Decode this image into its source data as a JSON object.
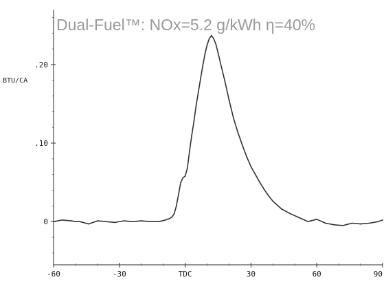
{
  "chart_data": {
    "type": "line",
    "title": "Dual-Fuel™: NOx=5.2 g/kWh η=40%",
    "ylabel": "BTU/CA",
    "xlabel": "",
    "xlim": [
      -60,
      90
    ],
    "ylim": [
      -0.055,
      0.27
    ],
    "y_ticks": [
      {
        "value": 0.2,
        "label": ".20"
      },
      {
        "value": 0.1,
        "label": ".10"
      },
      {
        "value": 0.0,
        "label": "0"
      }
    ],
    "x_ticks": [
      {
        "value": -60,
        "label": "-60"
      },
      {
        "value": -30,
        "label": "-30"
      },
      {
        "value": 0,
        "label": "TDC"
      },
      {
        "value": 30,
        "label": "30"
      },
      {
        "value": 60,
        "label": "60"
      },
      {
        "value": 90,
        "label": "90"
      }
    ],
    "grid": false,
    "series": [
      {
        "color": "#333333",
        "x": [
          -60,
          -56,
          -52,
          -50,
          -48,
          -44,
          -40,
          -36,
          -32,
          -28,
          -24,
          -20,
          -16,
          -12,
          -9,
          -7,
          -6,
          -5,
          -4,
          -3,
          -2,
          -1,
          0,
          1,
          2,
          3,
          4,
          5,
          6,
          7,
          8,
          9,
          10,
          11,
          12,
          13,
          14,
          15,
          16,
          18,
          20,
          22,
          24,
          26,
          28,
          30,
          32,
          34,
          36,
          38,
          40,
          44,
          48,
          52,
          56,
          60,
          64,
          68,
          72,
          76,
          80,
          84,
          88,
          90
        ],
        "y": [
          0.0,
          0.002,
          0.001,
          0.0,
          0.0,
          -0.003,
          0.001,
          0.0,
          -0.001,
          0.001,
          0.0,
          0.001,
          0.0,
          0.0,
          0.002,
          0.004,
          0.006,
          0.01,
          0.02,
          0.035,
          0.05,
          0.056,
          0.058,
          0.068,
          0.09,
          0.11,
          0.128,
          0.148,
          0.165,
          0.182,
          0.198,
          0.213,
          0.225,
          0.233,
          0.237,
          0.233,
          0.226,
          0.215,
          0.203,
          0.18,
          0.155,
          0.132,
          0.114,
          0.098,
          0.083,
          0.07,
          0.06,
          0.05,
          0.041,
          0.033,
          0.026,
          0.016,
          0.01,
          0.005,
          0.0,
          0.003,
          -0.002,
          -0.004,
          -0.005,
          -0.002,
          -0.003,
          -0.002,
          0.0,
          0.002
        ]
      }
    ]
  }
}
